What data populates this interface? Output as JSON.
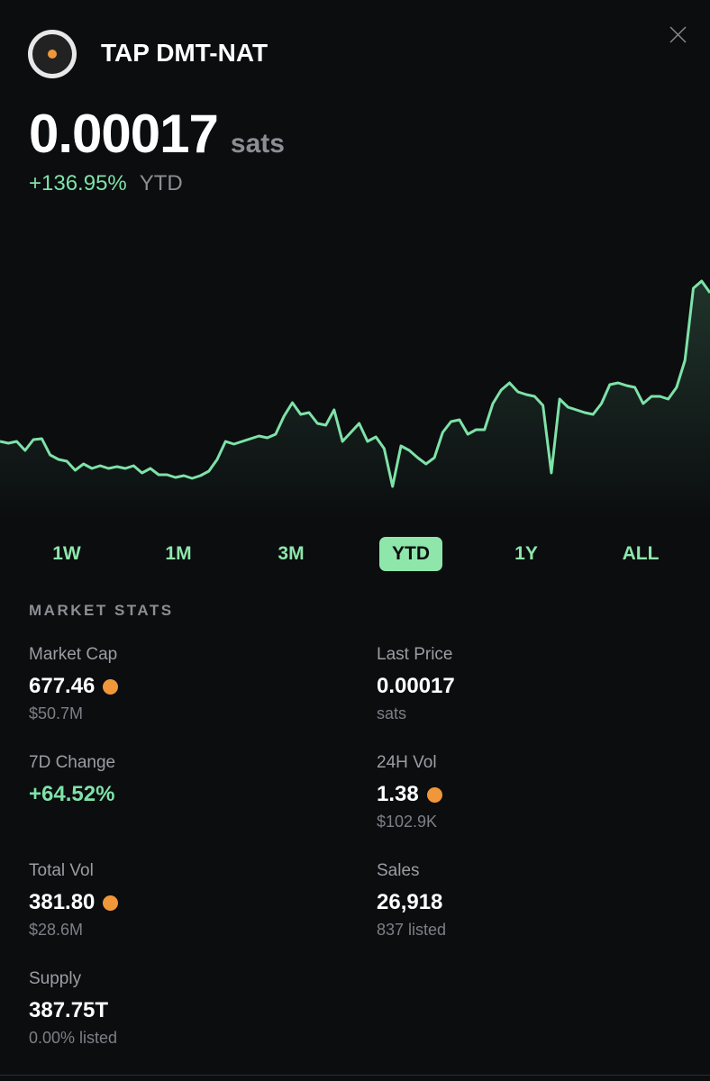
{
  "header": {
    "title": "TAP DMT-NAT",
    "price": "0.00017",
    "unit": "sats",
    "change": "+136.95%",
    "period": "YTD"
  },
  "chart_data": {
    "type": "line",
    "color": "#7ee2a8",
    "values": [
      70,
      68,
      70,
      60,
      72,
      73,
      55,
      50,
      48,
      38,
      45,
      40,
      43,
      40,
      42,
      40,
      43,
      35,
      40,
      33,
      33,
      30,
      32,
      29,
      32,
      37,
      50,
      70,
      67,
      70,
      73,
      76,
      74,
      78,
      98,
      113,
      100,
      102,
      90,
      88,
      105,
      70,
      80,
      90,
      70,
      75,
      62,
      20,
      65,
      60,
      52,
      45,
      52,
      80,
      92,
      94,
      78,
      83,
      83,
      112,
      127,
      135,
      125,
      122,
      120,
      110,
      35,
      117,
      108,
      105,
      102,
      100,
      112,
      133,
      135,
      132,
      130,
      112,
      120,
      120,
      117,
      130,
      160,
      240,
      248,
      235
    ]
  },
  "ranges": {
    "items": [
      "1W",
      "1M",
      "3M",
      "YTD",
      "1Y",
      "ALL"
    ],
    "active": "YTD"
  },
  "stats": {
    "title": "MARKET STATS",
    "items": [
      {
        "label": "Market Cap",
        "value": "677.46",
        "sub": "$50.7M",
        "btc_icon": true
      },
      {
        "label": "Last Price",
        "value": "0.00017",
        "sub": "sats"
      },
      {
        "label": "7D Change",
        "value": "+64.52%",
        "color": "#7ee2a8"
      },
      {
        "label": "24H Vol",
        "value": "1.38",
        "sub": "$102.9K",
        "btc_icon": true
      },
      {
        "label": "Total Vol",
        "value": "381.80",
        "sub": "$28.6M",
        "btc_icon": true
      },
      {
        "label": "Sales",
        "value": "26,918",
        "sub": "837 listed"
      },
      {
        "label": "Supply",
        "value": "387.75T",
        "sub": "0.00% listed"
      }
    ]
  }
}
